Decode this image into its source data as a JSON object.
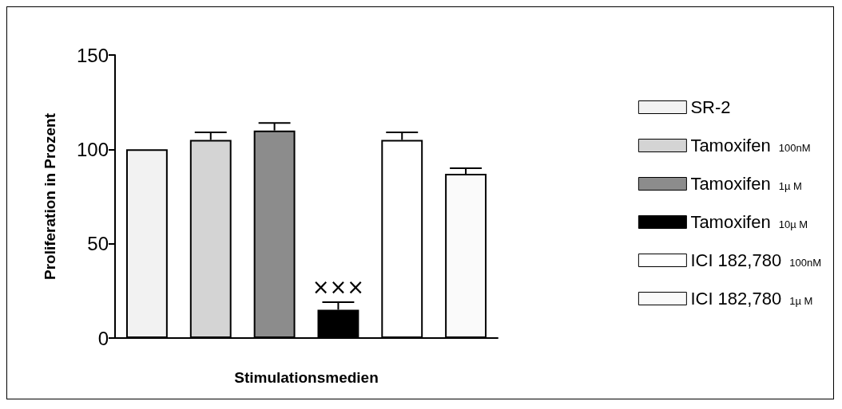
{
  "chart_data": {
    "type": "bar",
    "xlabel": "Stimulationsmedien",
    "ylabel": "Proliferation in Prozent",
    "categories": [
      null,
      null,
      null,
      null,
      null,
      null
    ],
    "series": [
      {
        "name": "SR-2",
        "color": "#f2f2f2",
        "values": [
          100,
          null,
          null,
          null,
          null,
          null
        ]
      },
      {
        "name": "Tamoxifen $_{100nM}$",
        "color": "#d4d4d4",
        "values": [
          null,
          105,
          null,
          null,
          null,
          null
        ],
        "errors": [
          null,
          4,
          null,
          null,
          null,
          null
        ]
      },
      {
        "name": "Tamoxifen $_{1µ M}$",
        "color": "#8c8c8c",
        "values": [
          null,
          null,
          110,
          null,
          null,
          null
        ],
        "errors": [
          null,
          null,
          4,
          null,
          null,
          null
        ]
      },
      {
        "name": "Tamoxifen $_{10µ M}$",
        "color": "#000000",
        "values": [
          null,
          null,
          null,
          15,
          null,
          null
        ],
        "errors": [
          null,
          null,
          null,
          4,
          null,
          null
        ]
      },
      {
        "name": "ICI 182,780 $_{100nM}$",
        "color": "#ffffff",
        "values": [
          null,
          null,
          null,
          null,
          105,
          null
        ],
        "errors": [
          null,
          null,
          null,
          null,
          4,
          null
        ]
      },
      {
        "name": "ICI 182,780 $_{1µ M}$",
        "color": "#fafafa",
        "values": [
          null,
          null,
          null,
          null,
          null,
          87
        ],
        "errors": [
          null,
          null,
          null,
          null,
          null,
          3
        ]
      }
    ],
    "ylim": [
      0,
      150
    ],
    "yticks": [
      0,
      50,
      100,
      150
    ],
    "grid": false,
    "legend": "right",
    "annotations": [
      "×××"
    ]
  }
}
